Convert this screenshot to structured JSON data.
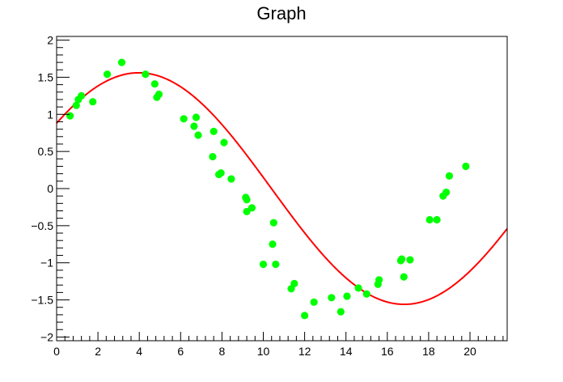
{
  "chart_data": {
    "type": "scatter",
    "title": "Graph",
    "xlabel": "",
    "ylabel": "",
    "xlim": [
      0,
      21.8
    ],
    "ylim": [
      -2.05,
      2.05
    ],
    "x_ticks": [
      0,
      2,
      4,
      6,
      8,
      10,
      12,
      14,
      16,
      18,
      20
    ],
    "y_ticks": [
      -2,
      -1.5,
      -1,
      -0.5,
      0,
      0.5,
      1,
      1.5,
      2
    ],
    "x_tick_labels": [
      "0",
      "2",
      "4",
      "6",
      "8",
      "10",
      "12",
      "14",
      "16",
      "18",
      "20"
    ],
    "y_tick_labels": [
      "−2",
      "−1.5",
      "−1",
      "−0.5",
      "0",
      "0.5",
      "1",
      "1.5",
      "2"
    ],
    "grid": false,
    "legend": "none",
    "series": [
      {
        "kind": "points",
        "color": "#00ff00",
        "points": [
          [
            0.65,
            0.98
          ],
          [
            0.95,
            1.12
          ],
          [
            1.05,
            1.2
          ],
          [
            1.2,
            1.25
          ],
          [
            1.75,
            1.17
          ],
          [
            2.45,
            1.54
          ],
          [
            3.15,
            1.7
          ],
          [
            4.3,
            1.54
          ],
          [
            4.75,
            1.41
          ],
          [
            4.85,
            1.23
          ],
          [
            4.95,
            1.27
          ],
          [
            6.15,
            0.94
          ],
          [
            6.65,
            0.84
          ],
          [
            6.75,
            0.96
          ],
          [
            6.85,
            0.72
          ],
          [
            7.55,
            0.43
          ],
          [
            7.6,
            0.77
          ],
          [
            7.85,
            0.19
          ],
          [
            7.95,
            0.21
          ],
          [
            8.1,
            0.62
          ],
          [
            8.45,
            0.13
          ],
          [
            9.15,
            -0.12
          ],
          [
            9.2,
            -0.15
          ],
          [
            9.2,
            -0.31
          ],
          [
            9.45,
            -0.26
          ],
          [
            10.0,
            -1.02
          ],
          [
            10.45,
            -0.75
          ],
          [
            10.5,
            -0.46
          ],
          [
            10.6,
            -1.02
          ],
          [
            11.35,
            -1.35
          ],
          [
            11.5,
            -1.28
          ],
          [
            12.0,
            -1.71
          ],
          [
            12.45,
            -1.53
          ],
          [
            13.3,
            -1.47
          ],
          [
            13.75,
            -1.66
          ],
          [
            14.05,
            -1.45
          ],
          [
            14.6,
            -1.34
          ],
          [
            15.0,
            -1.42
          ],
          [
            15.55,
            -1.29
          ],
          [
            15.6,
            -1.23
          ],
          [
            16.65,
            -0.97
          ],
          [
            16.7,
            -0.95
          ],
          [
            16.8,
            -1.19
          ],
          [
            17.1,
            -0.96
          ],
          [
            18.05,
            -0.42
          ],
          [
            18.4,
            -0.42
          ],
          [
            18.7,
            -0.1
          ],
          [
            18.85,
            -0.05
          ],
          [
            19.0,
            0.17
          ],
          [
            19.8,
            0.3
          ]
        ]
      },
      {
        "kind": "line",
        "color": "#ff0000",
        "function": "1.56*sin(0.2445*x+0.6)"
      }
    ]
  }
}
